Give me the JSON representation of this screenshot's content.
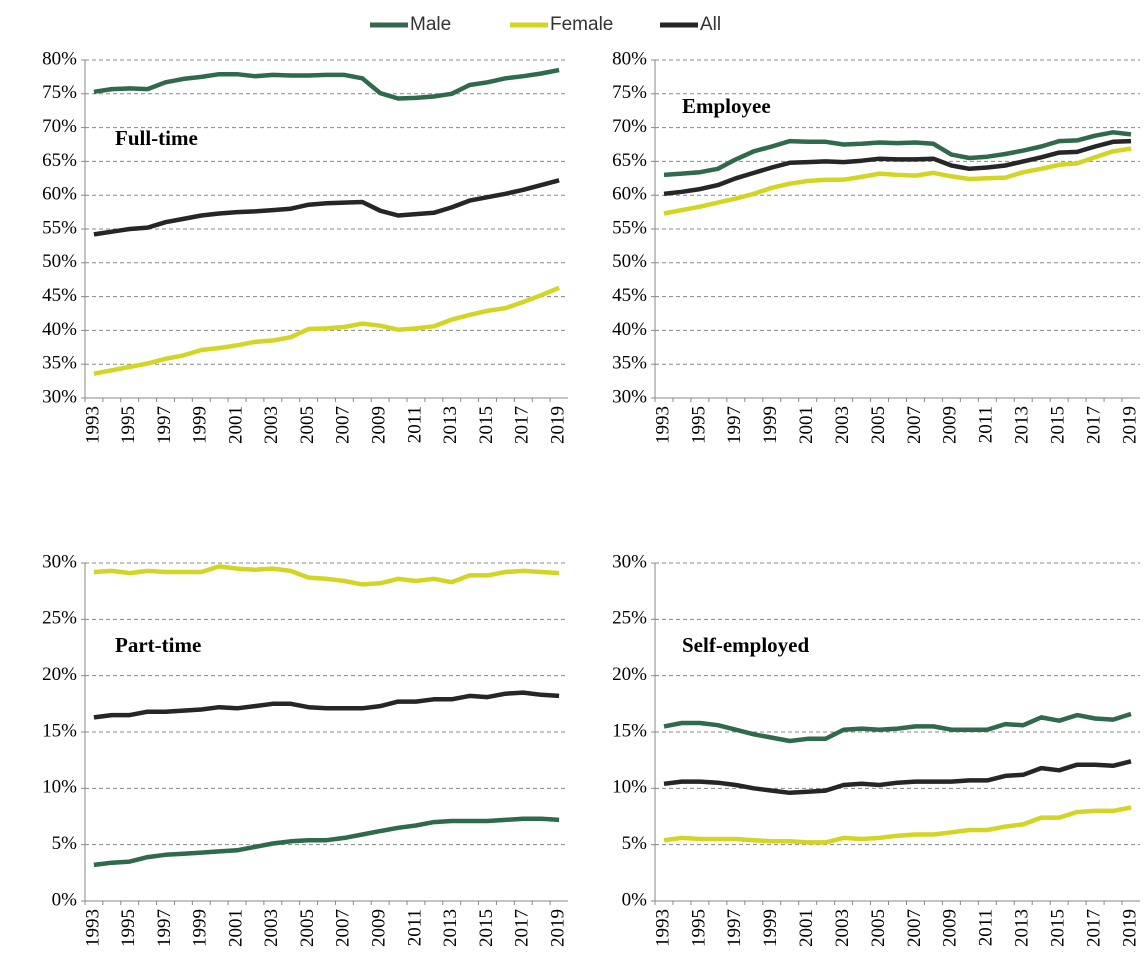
{
  "chart_data": [
    {
      "type": "line",
      "title": "Full-time",
      "categories": [
        "1993",
        null,
        "1995",
        null,
        "1997",
        null,
        "1999",
        null,
        "2001",
        null,
        "2003",
        null,
        "2005",
        null,
        "2007",
        null,
        "2009",
        null,
        "2011",
        null,
        "2013",
        null,
        "2015",
        null,
        "2017",
        null,
        "2019"
      ],
      "series": [
        {
          "name": "Male",
          "color": "#2f6a4d",
          "values": [
            75.3,
            75.7,
            75.8,
            75.7,
            76.7,
            77.2,
            77.5,
            77.9,
            77.9,
            77.6,
            77.8,
            77.7,
            77.7,
            77.8,
            77.8,
            77.3,
            75.1,
            74.3,
            74.4,
            74.6,
            75.0,
            76.3,
            76.7,
            77.3,
            77.6,
            78.0,
            78.5
          ]
        },
        {
          "name": "Female",
          "color": "#d4d424",
          "values": [
            33.6,
            34.1,
            34.6,
            35.1,
            35.8,
            36.3,
            37.1,
            37.4,
            37.8,
            38.3,
            38.5,
            39.0,
            40.2,
            40.3,
            40.5,
            41.0,
            40.7,
            40.1,
            40.3,
            40.6,
            41.6,
            42.3,
            42.9,
            43.3,
            44.2,
            45.2,
            46.3
          ]
        },
        {
          "name": "All",
          "color": "#262626",
          "values": [
            54.2,
            54.6,
            55.0,
            55.2,
            56.0,
            56.5,
            57.0,
            57.3,
            57.5,
            57.6,
            57.8,
            58.0,
            58.6,
            58.8,
            58.9,
            59.0,
            57.7,
            57.0,
            57.2,
            57.4,
            58.2,
            59.2,
            59.7,
            60.2,
            60.8,
            61.5,
            62.2
          ]
        }
      ],
      "ylim": [
        30,
        80
      ],
      "yticks": [
        {
          "value": 30,
          "label": "30%"
        },
        {
          "value": 35,
          "label": "35%"
        },
        {
          "value": 40,
          "label": "40%"
        },
        {
          "value": 45,
          "label": "45%"
        },
        {
          "value": 50,
          "label": "50%"
        },
        {
          "value": 55,
          "label": "55%"
        },
        {
          "value": 60,
          "label": "60%"
        },
        {
          "value": 65,
          "label": "65%"
        },
        {
          "value": 70,
          "label": "70%"
        },
        {
          "value": 75,
          "label": "75%"
        },
        {
          "value": 80,
          "label": "80%"
        }
      ],
      "grid": true
    },
    {
      "type": "line",
      "title": "Employee",
      "categories": [
        "1993",
        null,
        "1995",
        null,
        "1997",
        null,
        "1999",
        null,
        "2001",
        null,
        "2003",
        null,
        "2005",
        null,
        "2007",
        null,
        "2009",
        null,
        "2011",
        null,
        "2013",
        null,
        "2015",
        null,
        "2017",
        null,
        "2019"
      ],
      "series": [
        {
          "color": "#2f6a4d",
          "values": [
            63.0,
            63.2,
            63.4,
            63.9,
            65.3,
            66.5,
            67.2,
            68.0,
            67.9,
            67.9,
            67.5,
            67.6,
            67.8,
            67.7,
            67.8,
            67.6,
            66.0,
            65.5,
            65.7,
            66.1,
            66.6,
            67.2,
            68.0,
            68.1,
            68.8,
            69.3,
            69.0
          ]
        },
        {
          "color": "#d4d424",
          "values": [
            57.3,
            57.8,
            58.3,
            58.9,
            59.5,
            60.2,
            61.1,
            61.7,
            62.1,
            62.3,
            62.3,
            62.7,
            63.2,
            63.0,
            62.9,
            63.3,
            62.8,
            62.4,
            62.5,
            62.6,
            63.4,
            63.9,
            64.5,
            64.7,
            65.6,
            66.5,
            66.9
          ]
        },
        {
          "color": "#262626",
          "values": [
            60.2,
            60.5,
            60.9,
            61.5,
            62.5,
            63.3,
            64.1,
            64.8,
            64.9,
            65.0,
            64.9,
            65.1,
            65.4,
            65.3,
            65.3,
            65.4,
            64.4,
            63.9,
            64.1,
            64.4,
            65.0,
            65.6,
            66.3,
            66.4,
            67.2,
            67.9,
            68.0
          ]
        }
      ],
      "ylim": [
        30,
        80
      ],
      "yticks": [
        {
          "value": 30,
          "label": "30%"
        },
        {
          "value": 35,
          "label": "35%"
        },
        {
          "value": 40,
          "label": "40%"
        },
        {
          "value": 45,
          "label": "45%"
        },
        {
          "value": 50,
          "label": "50%"
        },
        {
          "value": 55,
          "label": "55%"
        },
        {
          "value": 60,
          "label": "60%"
        },
        {
          "value": 65,
          "label": "65%"
        },
        {
          "value": 70,
          "label": "70%"
        },
        {
          "value": 75,
          "label": "75%"
        },
        {
          "value": 80,
          "label": "80%"
        }
      ],
      "grid": true
    },
    {
      "type": "line",
      "title": "Part-time",
      "categories": [
        "1993",
        null,
        "1995",
        null,
        "1997",
        null,
        "1999",
        null,
        "2001",
        null,
        "2003",
        null,
        "2005",
        null,
        "2007",
        null,
        "2009",
        null,
        "2011",
        null,
        "2013",
        null,
        "2015",
        null,
        "2017",
        null,
        "2019"
      ],
      "series": [
        {
          "color": "#2f6a4d",
          "values": [
            3.2,
            3.4,
            3.5,
            3.9,
            4.1,
            4.2,
            4.3,
            4.4,
            4.5,
            4.8,
            5.1,
            5.3,
            5.4,
            5.4,
            5.6,
            5.9,
            6.2,
            6.5,
            6.7,
            7.0,
            7.1,
            7.1,
            7.1,
            7.2,
            7.3,
            7.3,
            7.2
          ]
        },
        {
          "color": "#d4d424",
          "values": [
            29.2,
            29.3,
            29.1,
            29.3,
            29.2,
            29.2,
            29.2,
            29.7,
            29.5,
            29.4,
            29.5,
            29.3,
            28.7,
            28.6,
            28.4,
            28.1,
            28.2,
            28.6,
            28.4,
            28.6,
            28.3,
            28.9,
            28.9,
            29.2,
            29.3,
            29.2,
            29.1
          ]
        },
        {
          "color": "#262626",
          "values": [
            16.3,
            16.5,
            16.5,
            16.8,
            16.8,
            16.9,
            17.0,
            17.2,
            17.1,
            17.3,
            17.5,
            17.5,
            17.2,
            17.1,
            17.1,
            17.1,
            17.3,
            17.7,
            17.7,
            17.9,
            17.9,
            18.2,
            18.1,
            18.4,
            18.5,
            18.3,
            18.2
          ]
        }
      ],
      "ylim": [
        0,
        30
      ],
      "yticks": [
        {
          "value": 0,
          "label": "0%"
        },
        {
          "value": 5,
          "label": "5%"
        },
        {
          "value": 10,
          "label": "10%"
        },
        {
          "value": 15,
          "label": "15%"
        },
        {
          "value": 20,
          "label": "20%"
        },
        {
          "value": 25,
          "label": "25%"
        },
        {
          "value": 30,
          "label": "30%"
        }
      ],
      "grid": true
    },
    {
      "type": "line",
      "title": "Self-employed",
      "categories": [
        "1993",
        null,
        "1995",
        null,
        "1997",
        null,
        "1999",
        null,
        "2001",
        null,
        "2003",
        null,
        "2005",
        null,
        "2007",
        null,
        "2009",
        null,
        "2011",
        null,
        "2013",
        null,
        "2015",
        null,
        "2017",
        null,
        "2019"
      ],
      "series": [
        {
          "color": "#2f6a4d",
          "values": [
            15.5,
            15.8,
            15.8,
            15.6,
            15.2,
            14.8,
            14.5,
            14.2,
            14.4,
            14.4,
            15.2,
            15.3,
            15.2,
            15.3,
            15.5,
            15.5,
            15.2,
            15.2,
            15.2,
            15.7,
            15.6,
            16.3,
            16.0,
            16.5,
            16.2,
            16.1,
            16.6
          ]
        },
        {
          "color": "#d4d424",
          "values": [
            5.4,
            5.6,
            5.5,
            5.5,
            5.5,
            5.4,
            5.3,
            5.3,
            5.2,
            5.2,
            5.6,
            5.5,
            5.6,
            5.8,
            5.9,
            5.9,
            6.1,
            6.3,
            6.3,
            6.6,
            6.8,
            7.4,
            7.4,
            7.9,
            8.0,
            8.0,
            8.3
          ]
        },
        {
          "color": "#262626",
          "values": [
            10.4,
            10.6,
            10.6,
            10.5,
            10.3,
            10.0,
            9.8,
            9.6,
            9.7,
            9.8,
            10.3,
            10.4,
            10.3,
            10.5,
            10.6,
            10.6,
            10.6,
            10.7,
            10.7,
            11.1,
            11.2,
            11.8,
            11.6,
            12.1,
            12.1,
            12.0,
            12.4
          ]
        }
      ],
      "ylim": [
        0,
        30
      ],
      "yticks": [
        {
          "value": 0,
          "label": "0%"
        },
        {
          "value": 5,
          "label": "5%"
        },
        {
          "value": 10,
          "label": "10%"
        },
        {
          "value": 15,
          "label": "15%"
        },
        {
          "value": 20,
          "label": "20%"
        },
        {
          "value": 25,
          "label": "25%"
        },
        {
          "value": 30,
          "label": "30%"
        }
      ],
      "grid": true
    }
  ]
}
